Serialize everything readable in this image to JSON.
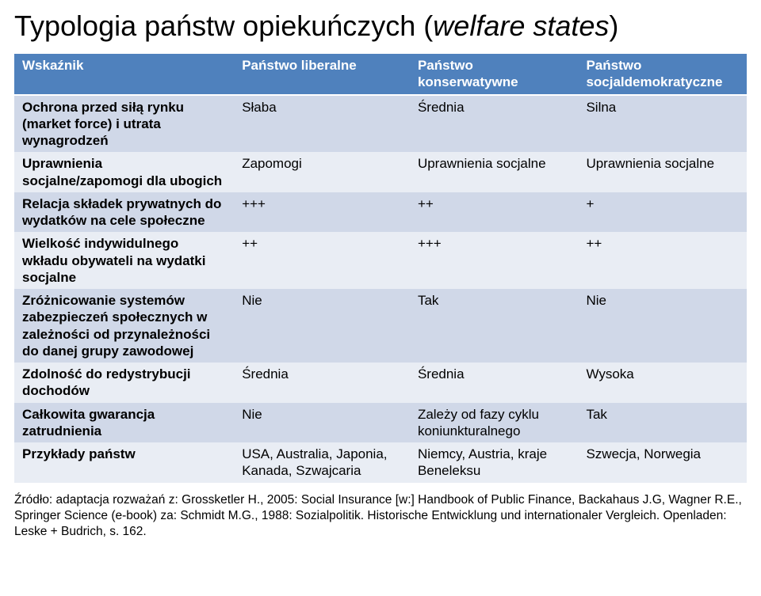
{
  "title_plain": "Typologia państw opiekuńczych (",
  "title_italic": "welfare states",
  "title_tail": ")",
  "colors": {
    "header_bg": "#4f81bd",
    "header_fg": "#ffffff",
    "band_a": "#d0d8e8",
    "band_b": "#e9edf4",
    "text": "#000000",
    "page_bg": "#ffffff"
  },
  "table": {
    "columns": [
      "Wskaźnik",
      "Państwo liberalne",
      "Państwo konserwatywne",
      "Państwo socjaldemokratyczne"
    ],
    "rows": [
      {
        "label": "Ochrona przed siłą rynku (market force) i utrata wynagrodzeń",
        "c1": "Słaba",
        "c2": "Średnia",
        "c3": "Silna"
      },
      {
        "label": "Uprawnienia socjalne/zapomogi dla ubogich",
        "c1": "Zapomogi",
        "c2": "Uprawnienia socjalne",
        "c3": "Uprawnienia socjalne"
      },
      {
        "label": "Relacja składek prywatnych do wydatków na cele społeczne",
        "c1": "+++",
        "c2": "++",
        "c3": "+"
      },
      {
        "label": "Wielkość indywidulnego wkładu obywateli na wydatki socjalne",
        "c1": "++",
        "c2": "+++",
        "c3": "++"
      },
      {
        "label": "Zróżnicowanie systemów zabezpieczeń społecznych w zależności od przynależności do danej grupy zawodowej",
        "c1": "Nie",
        "c2": "Tak",
        "c3": "Nie"
      },
      {
        "label": "Zdolność do redystrybucji dochodów",
        "c1": "Średnia",
        "c2": "Średnia",
        "c3": "Wysoka"
      },
      {
        "label": "Całkowita gwarancja zatrudnienia",
        "c1": "Nie",
        "c2": "Zależy od fazy cyklu koniunkturalnego",
        "c3": "Tak"
      },
      {
        "label": "Przykłady państw",
        "c1": "USA, Australia, Japonia, Kanada, Szwajcaria",
        "c2": "Niemcy, Austria, kraje Beneleksu",
        "c3": "Szwecja, Norwegia"
      }
    ]
  },
  "footnote": "Źródło: adaptacja rozważań z: Grossketler H., 2005: Social Insurance [w:] Handbook of Public Finance, Backahaus J.G, Wagner R.E., Springer Science (e-book) za: Schmidt M.G., 1988: Sozialpolitik. Historische Entwicklung und internationaler Vergleich. Openladen: Leske + Budrich, s. 162."
}
